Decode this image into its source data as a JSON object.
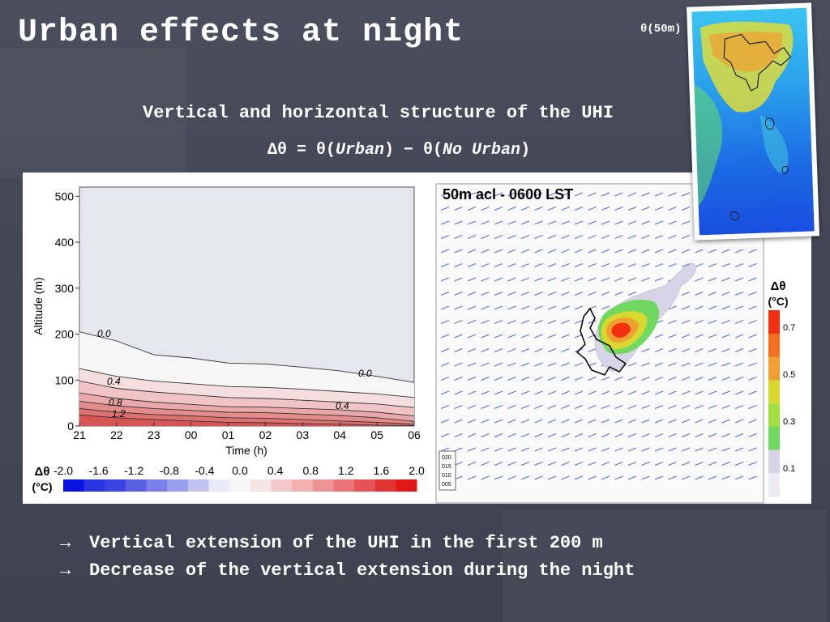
{
  "slide": {
    "title": "Urban effects at night",
    "subtitle": "Vertical and horizontal structure of the UHI",
    "formula": {
      "delta": "Δθ = θ(",
      "urban": "Urban",
      "mid": ") − θ(",
      "no_urban": "No Urban",
      "end": ")"
    },
    "theta_label": "θ(50m)",
    "bullets": [
      {
        "arrow": "→",
        "text": "Vertical extension of the UHI in the first 200 m"
      },
      {
        "arrow": "→",
        "text": "Decrease of the vertical extension during the night"
      }
    ]
  },
  "chart_data": [
    {
      "type": "contour",
      "xlabel": "Time (h)",
      "ylabel": "Altitude (m)",
      "x_ticks": [
        "21",
        "22",
        "23",
        "00",
        "01",
        "02",
        "03",
        "04",
        "05",
        "06"
      ],
      "y_ticks": [
        0,
        100,
        200,
        300,
        400,
        500
      ],
      "ylim": [
        0,
        520
      ],
      "contour_labels": [
        "0.0",
        "0.4",
        "0.8",
        "1.2",
        "0.0",
        "0.4"
      ],
      "contours": [
        {
          "level": 0.0,
          "altitude": [
            205,
            185,
            155,
            148,
            137,
            135,
            128,
            120,
            108,
            95
          ]
        },
        {
          "level": 0.2,
          "altitude": [
            125,
            108,
            98,
            92,
            86,
            84,
            80,
            75,
            70,
            62
          ]
        },
        {
          "level": 0.4,
          "altitude": [
            98,
            82,
            74,
            68,
            62,
            60,
            56,
            52,
            48,
            40
          ]
        },
        {
          "level": 0.6,
          "altitude": [
            72,
            60,
            52,
            47,
            42,
            41,
            38,
            35,
            30,
            22
          ]
        },
        {
          "level": 0.8,
          "altitude": [
            54,
            44,
            38,
            34,
            30,
            29,
            26,
            23,
            18,
            10
          ]
        },
        {
          "level": 1.0,
          "altitude": [
            38,
            30,
            25,
            22,
            18,
            17,
            14,
            11,
            8,
            4
          ]
        },
        {
          "level": 1.2,
          "altitude": [
            24,
            18,
            14,
            11,
            8,
            7,
            5,
            4,
            2,
            1
          ]
        }
      ],
      "colorbar": {
        "label": "Δθ",
        "unit": "(°C)",
        "ticks": [
          "-2.0",
          "-1.6",
          "-1.2",
          "-0.8",
          "-0.4",
          "0.0",
          "0.4",
          "0.8",
          "1.2",
          "1.6",
          "2.0"
        ],
        "colors": [
          "#0a14e0",
          "#2a34e4",
          "#3a44e0",
          "#5a60e4",
          "#7a80e8",
          "#9aa0ec",
          "#bfc3f2",
          "#e8e8f6",
          "#f6f6f6",
          "#f4e4e4",
          "#f2c8c8",
          "#f0b0b0",
          "#ec9494",
          "#e87474",
          "#e45454",
          "#e03434",
          "#e01818"
        ]
      }
    },
    {
      "type": "map",
      "title": "50m acl - 0600 LST",
      "colorbar": {
        "label": "Δθ",
        "unit": "(°C)",
        "ticks": [
          "0.7",
          "0.5",
          "0.3",
          "0.1"
        ],
        "colors": [
          "#f03010",
          "#f07020",
          "#f0a030",
          "#d8d830",
          "#a0e040",
          "#70d860",
          "#d8d4e8",
          "#eeeaf2"
        ]
      },
      "wind_legend": [
        "020",
        "015",
        "010",
        "005"
      ]
    }
  ]
}
